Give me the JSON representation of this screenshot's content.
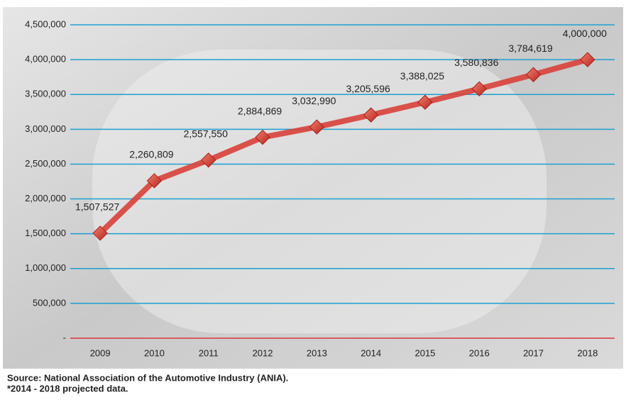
{
  "chart_data": {
    "type": "line",
    "categories": [
      "2009",
      "2010",
      "2011",
      "2012",
      "2013",
      "2014",
      "2015",
      "2016",
      "2017",
      "2018"
    ],
    "values": [
      1507527,
      2260809,
      2557550,
      2884869,
      3032990,
      3205596,
      3388025,
      3580836,
      3784619,
      4000000
    ],
    "value_labels": [
      "1,507,527",
      "2,260,809",
      "2,557,550",
      "2,884,869",
      "3,032,990",
      "3,205,596",
      "3,388,025",
      "3,580,836",
      "3,784,619",
      "4,000,000"
    ],
    "color": "#d8413a",
    "ylim": [
      0,
      4500000
    ],
    "yticks": [
      {
        "value": 0,
        "label": "-"
      },
      {
        "value": 500000,
        "label": "500,000"
      },
      {
        "value": 1000000,
        "label": "1,000,000"
      },
      {
        "value": 1500000,
        "label": "1,500,000"
      },
      {
        "value": 2000000,
        "label": "2,000,000"
      },
      {
        "value": 2500000,
        "label": "2,500,000"
      },
      {
        "value": 3000000,
        "label": "3,000,000"
      },
      {
        "value": 3500000,
        "label": "3,500,000"
      },
      {
        "value": 4000000,
        "label": "4,000,000"
      },
      {
        "value": 4500000,
        "label": "4,500,000"
      }
    ],
    "grid": true,
    "source": "Source: National Association of the Automotive Industry (ANIA).",
    "note": "*2014 - 2018 projected data."
  }
}
